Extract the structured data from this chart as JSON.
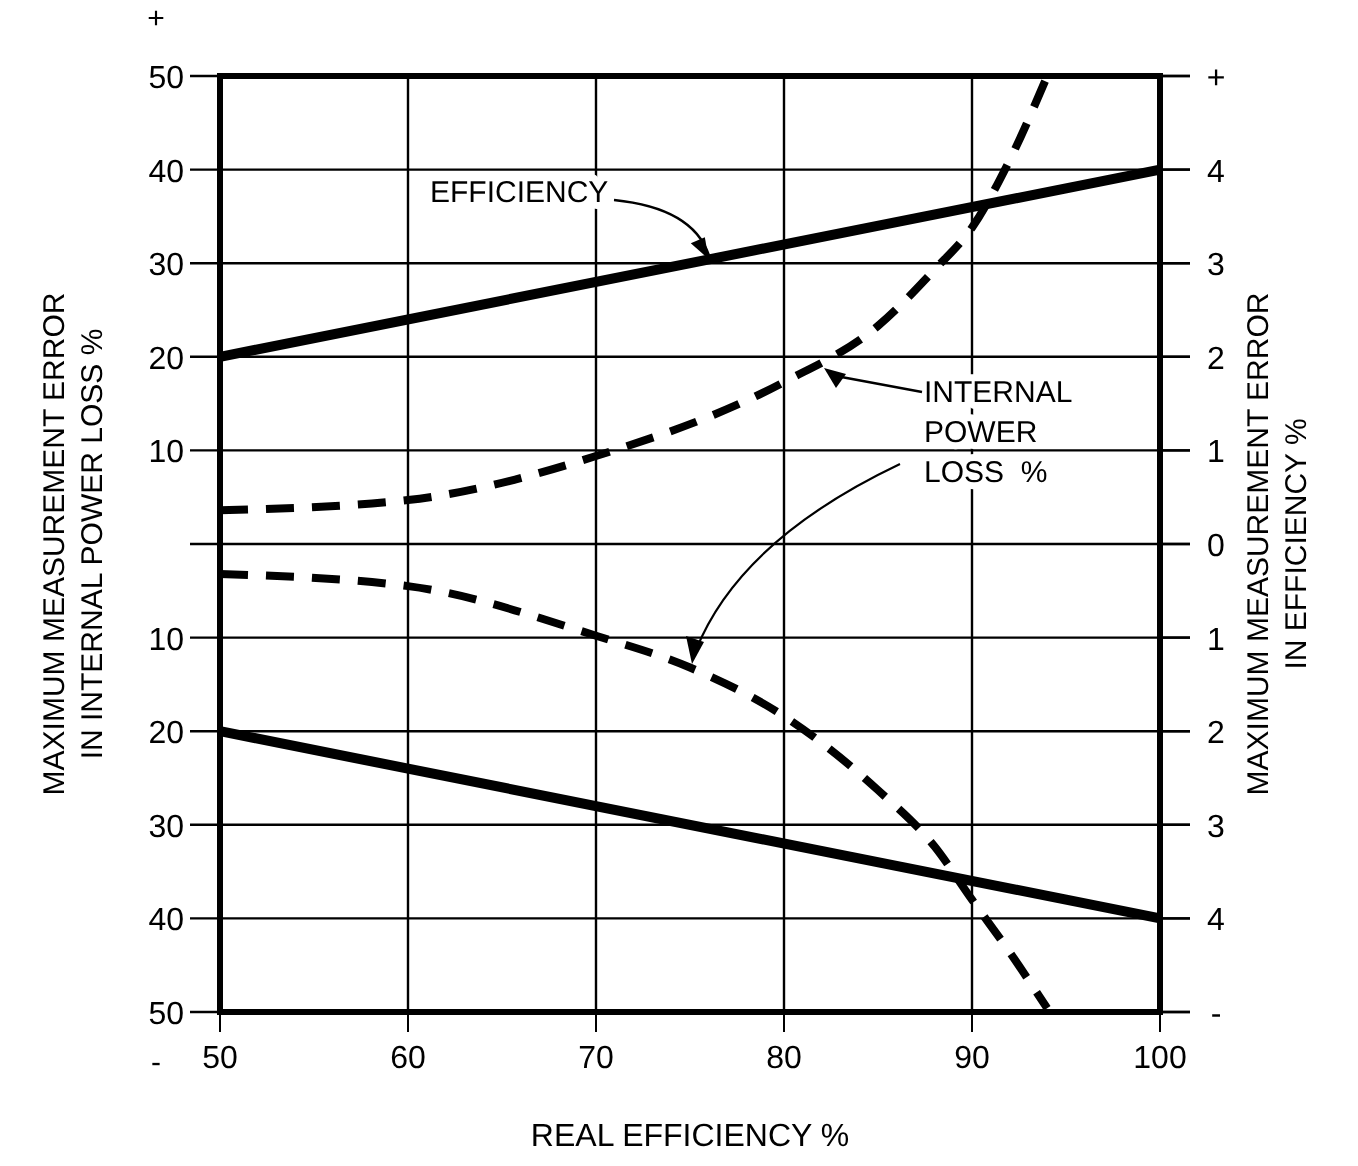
{
  "chart_data": {
    "type": "line",
    "xlabel": "REAL EFFICIENCY %",
    "ylabel": "MAXIMUM MEASUREMENT ERROR\nIN INTERNAL POWER LOSS %",
    "y2label": "MAXIMUM MEASUREMENT ERROR\nIN EFFICIENCY %",
    "xlim": [
      50,
      100
    ],
    "xticks": [
      50,
      60,
      70,
      80,
      90,
      100
    ],
    "ylim": [
      -50,
      50
    ],
    "yticks": [
      50,
      40,
      30,
      20,
      10,
      {
        "value": 0,
        "label": null
      },
      {
        "value": -10,
        "label": "10"
      },
      {
        "value": -20,
        "label": "20"
      },
      {
        "value": -30,
        "label": "30"
      },
      {
        "value": -40,
        "label": "40"
      },
      {
        "value": -50,
        "label": "50"
      }
    ],
    "y2lim": [
      -5,
      5
    ],
    "y2ticks": [
      {
        "value": 5,
        "label": "+"
      },
      4,
      3,
      2,
      1,
      0,
      {
        "value": -1,
        "label": "1"
      },
      {
        "value": -2,
        "label": "2"
      },
      {
        "value": -3,
        "label": "3"
      },
      {
        "value": -4,
        "label": "4"
      },
      {
        "value": -5,
        "label": "-"
      }
    ],
    "grid": true,
    "series": [
      {
        "color": "#000000",
        "axis": "y2",
        "line_style": "solid",
        "x": [
          50,
          100
        ],
        "values": [
          2,
          4
        ]
      },
      {
        "color": "#000000",
        "axis": "y2",
        "line_style": "solid",
        "x": [
          50,
          100
        ],
        "values": [
          -2,
          -4
        ]
      },
      {
        "color": "#000000",
        "line_style": "dashed",
        "x": [
          50,
          60,
          70,
          80,
          85,
          88,
          90,
          92,
          94
        ],
        "values": [
          3.6,
          4.7,
          9.4,
          17.3,
          23.3,
          29.3,
          33.8,
          41,
          50
        ]
      },
      {
        "color": "#000000",
        "line_style": "dashed",
        "x": [
          50,
          60,
          70,
          75,
          80,
          85,
          88,
          90,
          92,
          94
        ],
        "values": [
          -3.2,
          -4.5,
          -9.8,
          -13.2,
          -18.4,
          -26.3,
          -32.3,
          -38,
          -43.6,
          -49.6
        ]
      }
    ],
    "annotations": [
      {
        "text": "EFFICIENCY",
        "x": 76,
        "y": 30
      },
      "INTERNAL\nPOWER\nLOSS  %",
      "+",
      "-"
    ]
  }
}
